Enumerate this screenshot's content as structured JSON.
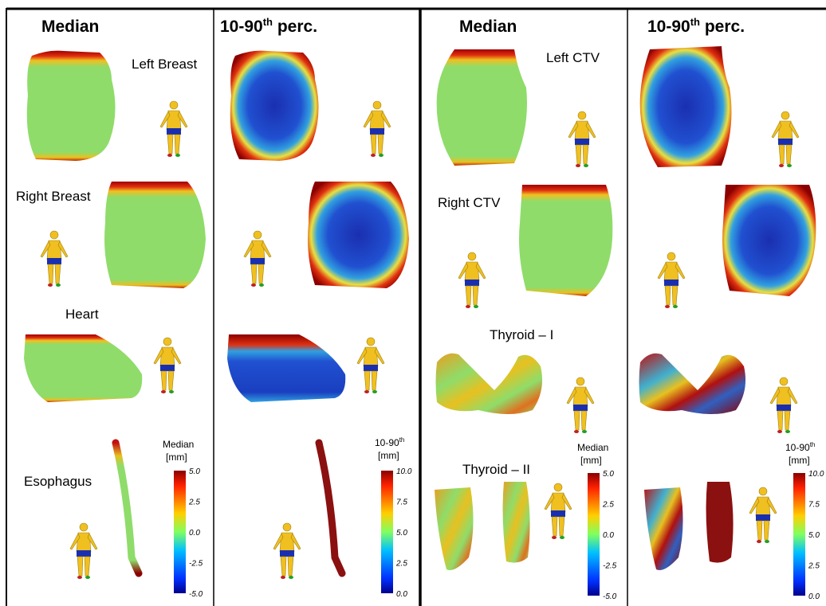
{
  "panels": [
    {
      "header": {
        "text": "Median"
      },
      "labels": [
        "Left Breast",
        "Right Breast",
        "Heart",
        "Esophagus"
      ],
      "colorbar": {
        "title": {
          "text": "Median"
        },
        "unit": "[mm]",
        "ticks": [
          "5.0",
          "2.5",
          "0.0",
          "-2.5",
          "-5.0"
        ]
      }
    },
    {
      "header": {
        "base": "10-90",
        "sup": "th",
        "rest": " perc."
      },
      "colorbar": {
        "title": {
          "base": "10-90",
          "sup": "th"
        },
        "unit": "[mm]",
        "ticks": [
          "10.0",
          "7.5",
          "5.0",
          "2.5",
          "0.0"
        ]
      }
    },
    {
      "header": {
        "text": "Median"
      },
      "labels": [
        "Left CTV",
        "Right CTV",
        "Thyroid – I",
        "Thyroid – II"
      ],
      "colorbar": {
        "title": {
          "text": "Median"
        },
        "unit": "[mm]",
        "ticks": [
          "5.0",
          "2.5",
          "0.0",
          "-2.5",
          "-5.0"
        ]
      }
    },
    {
      "header": {
        "base": "10-90",
        "sup": "th",
        "rest": " perc."
      },
      "colorbar": {
        "title": {
          "base": "10-90",
          "sup": "th"
        },
        "unit": "[mm]",
        "ticks": [
          "10.0",
          "7.5",
          "5.0",
          "2.5",
          "0.0"
        ]
      }
    }
  ]
}
